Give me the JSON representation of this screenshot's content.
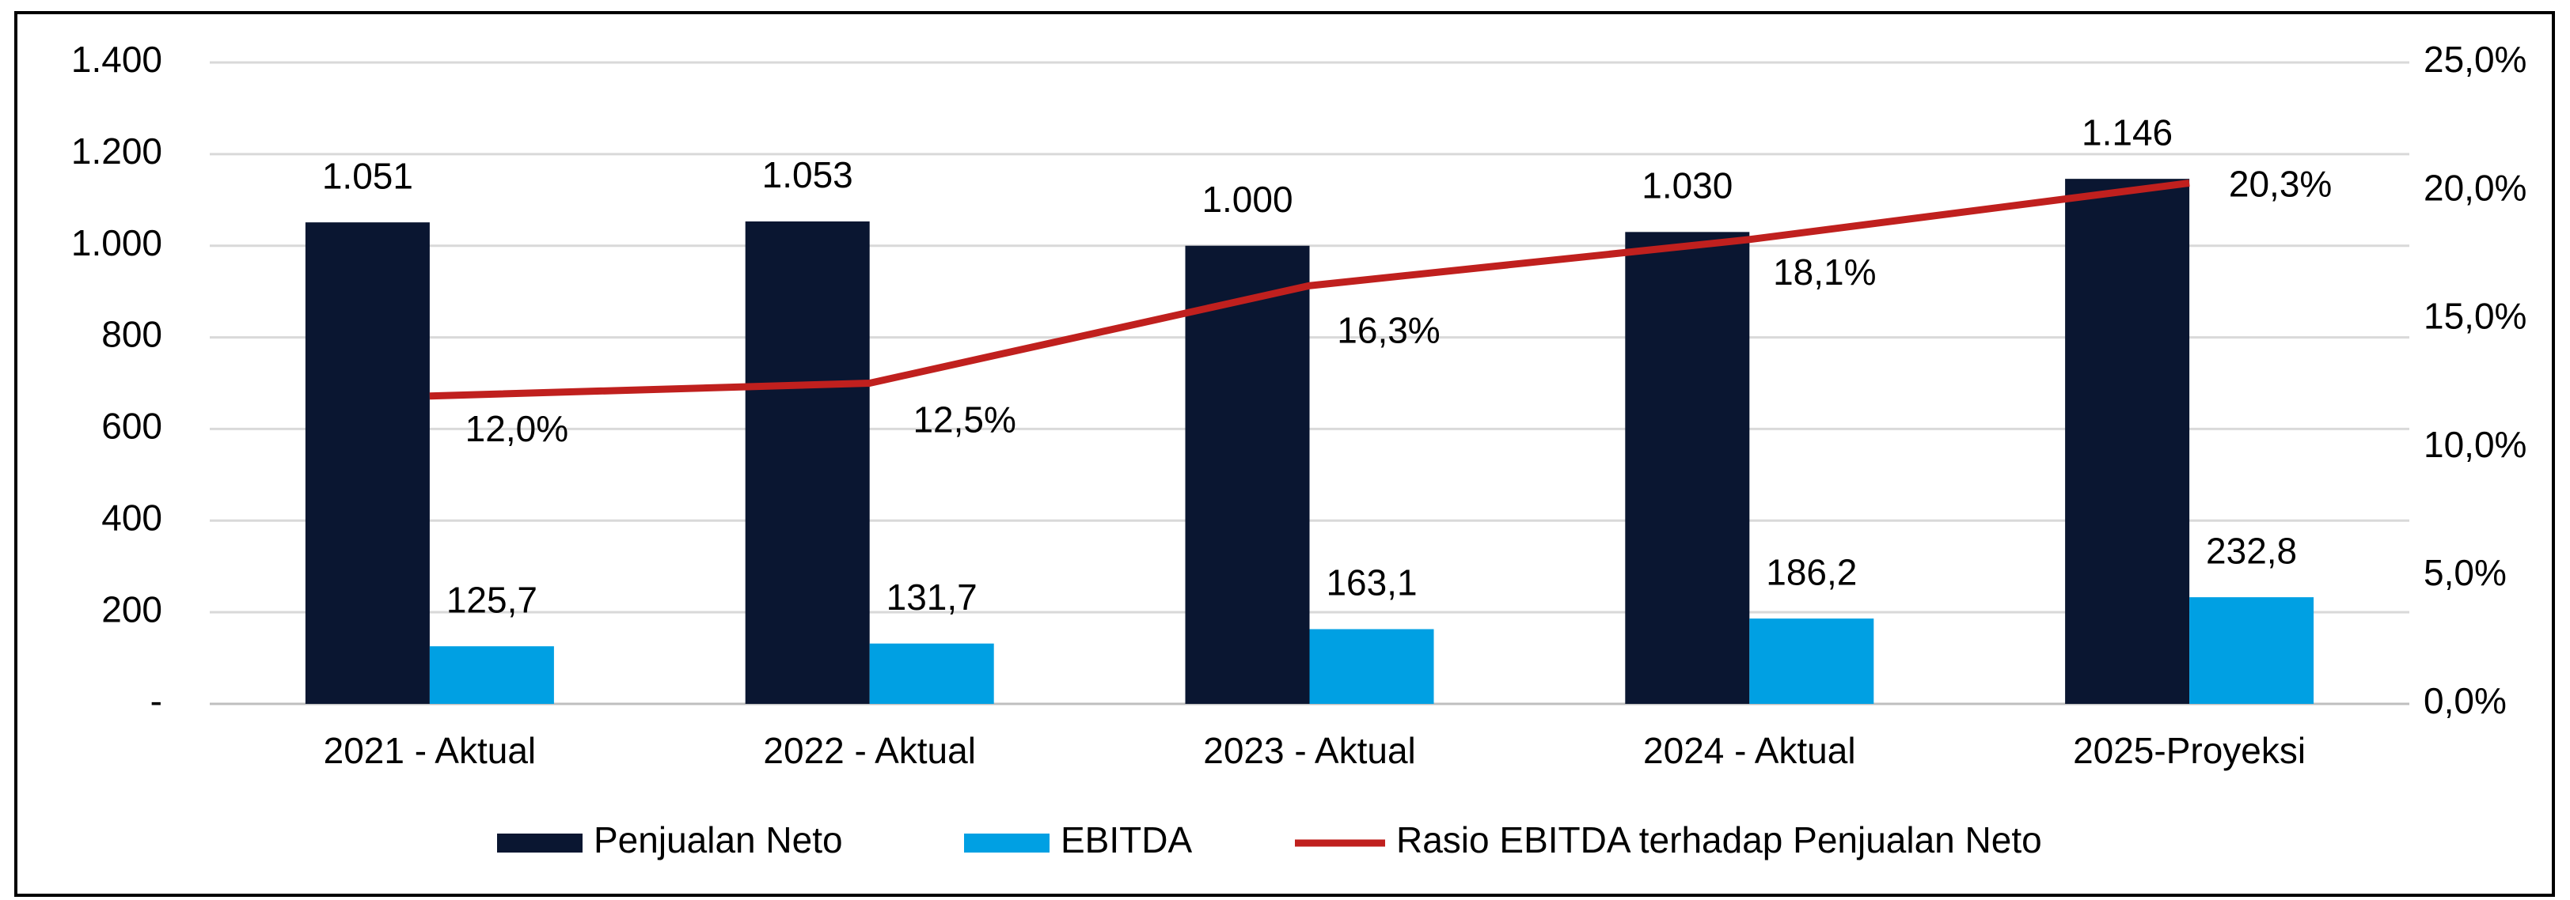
{
  "chart_data": {
    "type": "bar",
    "categories": [
      "2021 - Aktual",
      "2022 - Aktual",
      "2023 - Aktual",
      "2024 - Aktual",
      "2025-Proyeksi"
    ],
    "series": [
      {
        "name": "Penjualan Neto",
        "type": "bar",
        "color": "#0a1631",
        "values": [
          1051,
          1053,
          1000,
          1030,
          1146
        ],
        "value_labels": [
          "1.051",
          "1.053",
          "1.000",
          "1.030",
          "1.146"
        ]
      },
      {
        "name": "EBITDA",
        "type": "bar",
        "color": "#00a0e3",
        "values": [
          125.7,
          131.7,
          163.1,
          186.2,
          232.8
        ],
        "value_labels": [
          "125,7",
          "131,7",
          "163,1",
          "186,2",
          "232,8"
        ]
      },
      {
        "name": "Rasio EBITDA terhadap Penjualan Neto",
        "type": "line",
        "axis": "y2",
        "color": "#c0201e",
        "values": [
          12.0,
          12.5,
          16.3,
          18.1,
          20.3
        ],
        "value_labels": [
          "12,0%",
          "12,5%",
          "16,3%",
          "18,1%",
          "20,3%"
        ]
      }
    ],
    "ylim": [
      0,
      1400
    ],
    "yticks": [
      {
        "value": 0,
        "label": "-"
      },
      200,
      400,
      600,
      800,
      {
        "value": 1000,
        "label": "1.000"
      },
      {
        "value": 1200,
        "label": "1.200"
      },
      {
        "value": 1400,
        "label": "1.400"
      }
    ],
    "y2lim": [
      0,
      25
    ],
    "y2ticks": [
      {
        "value": 0,
        "label": "0,0%"
      },
      {
        "value": 5,
        "label": "5,0%"
      },
      {
        "value": 10,
        "label": "10,0%"
      },
      {
        "value": 15,
        "label": "15,0%"
      },
      {
        "value": 20,
        "label": "20,0%"
      },
      {
        "value": 25,
        "label": "25,0%"
      }
    ],
    "grid": true,
    "legend": "bottom"
  }
}
